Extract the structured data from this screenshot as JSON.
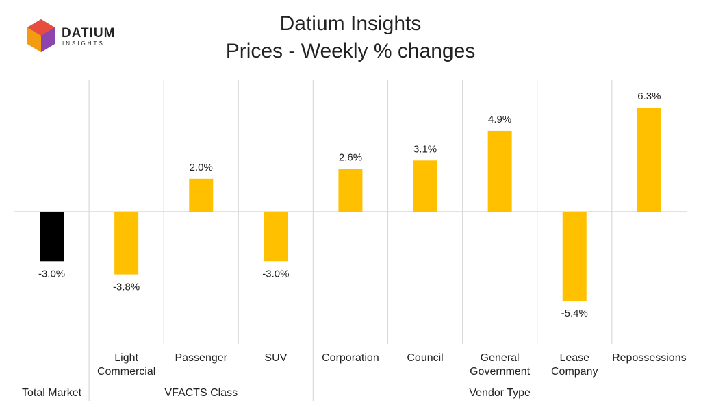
{
  "logo": {
    "name": "DATIUM",
    "tagline": "INSIGHTS"
  },
  "chart_data": {
    "type": "bar",
    "title": "Datium Insights",
    "subtitle": "Prices - Weekly % changes",
    "categories": [
      null,
      "Light Commercial",
      "Passenger",
      "SUV",
      "Corporation",
      "Council",
      "General Government",
      "Lease Company",
      "Repossessions"
    ],
    "groups": [
      "Total Market",
      "VFACTS Class",
      "VFACTS Class",
      "VFACTS Class",
      "Vendor Type",
      "Vendor Type",
      "Vendor Type",
      "Vendor Type",
      "Vendor Type"
    ],
    "values": [
      -3.0,
      -3.8,
      2.0,
      -3.0,
      2.6,
      3.1,
      4.9,
      -5.4,
      6.3
    ],
    "value_labels": [
      "-3.0%",
      "-3.8%",
      "2.0%",
      "-3.0%",
      "2.6%",
      "3.1%",
      "4.9%",
      "-5.4%",
      "6.3%"
    ],
    "colors": [
      "#000000",
      "#ffc000",
      "#ffc000",
      "#ffc000",
      "#ffc000",
      "#ffc000",
      "#ffc000",
      "#ffc000",
      "#ffc000"
    ]
  }
}
